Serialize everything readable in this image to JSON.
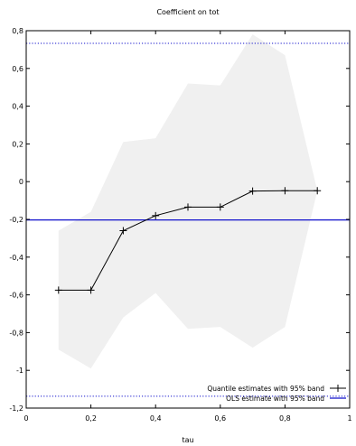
{
  "chart_data": {
    "type": "line",
    "title": "Coefficient on tot",
    "xlabel": "tau",
    "ylabel": "",
    "xlim": [
      0,
      1
    ],
    "ylim": [
      -1.2,
      0.8
    ],
    "x_ticks": [
      0,
      0.2,
      0.4,
      0.6,
      0.8,
      1
    ],
    "x_tick_labels": [
      "0",
      "0,2",
      "0,4",
      "0,6",
      "0,8",
      "1"
    ],
    "y_ticks": [
      -1.2,
      -1,
      -0.8,
      -0.6,
      -0.4,
      -0.2,
      0,
      0.2,
      0.4,
      0.6,
      0.8
    ],
    "y_tick_labels": [
      "-1,2",
      "-1",
      "-0,8",
      "-0,6",
      "-0,4",
      "-0,2",
      "0",
      "0,2",
      "0,4",
      "0,6",
      "0,8"
    ],
    "grid": false,
    "legend_position": "bottom-right",
    "series": [
      {
        "name": "Quantile estimates with 95% band",
        "color": "#000000",
        "x": [
          0.1,
          0.2,
          0.3,
          0.4,
          0.5,
          0.6,
          0.7,
          0.8,
          0.9
        ],
        "values": [
          -0.575,
          -0.575,
          -0.26,
          -0.18,
          -0.135,
          -0.135,
          -0.05,
          -0.048,
          -0.048
        ],
        "band_lower": [
          -0.89,
          -0.99,
          -0.72,
          -0.59,
          -0.78,
          -0.77,
          -0.88,
          -0.77,
          -0.048
        ],
        "band_upper": [
          -0.26,
          -0.16,
          0.21,
          0.23,
          0.52,
          0.51,
          0.78,
          0.67,
          -0.048
        ],
        "band_color": "#f0f0f0"
      },
      {
        "name": "OLS estimate with 95% band",
        "color": "#1010cc",
        "estimate": -0.203,
        "band": [
          -1.137,
          0.733
        ]
      }
    ]
  }
}
